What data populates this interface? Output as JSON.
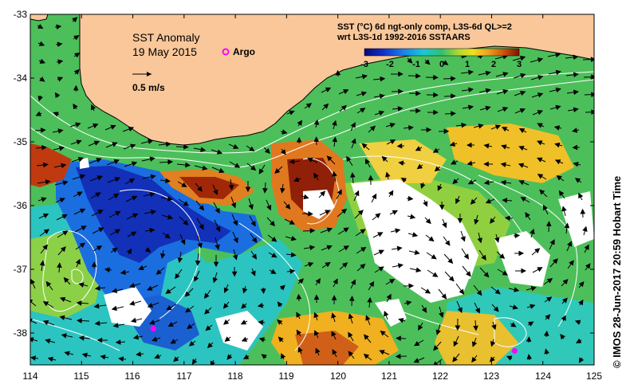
{
  "map": {
    "title": "SST Anomaly",
    "date": "19 May 2015",
    "argo_label": "Argo",
    "scale_label": "0.5 m/s",
    "legend_title_line1": "SST (°C) 6d ngt-only comp, L3S-6d QL>=2",
    "legend_title_line2": "wrt L3S-1d 1992-2016 SSTAARS",
    "colorbar_ticks": [
      "-3",
      "-2",
      "-1",
      "0",
      "1",
      "2",
      "3"
    ],
    "lat_labels": [
      "-33",
      "-34",
      "-35",
      "-36",
      "-37",
      "-38"
    ],
    "lon_labels": [
      "114",
      "115",
      "116",
      "117",
      "118",
      "119",
      "120",
      "121",
      "122",
      "123",
      "124",
      "125"
    ],
    "credit": "© IMOS 28-Jun-2017 20:59 Hobart Time",
    "colors": {
      "land": "#F9C79A",
      "no_data": "#FFFFFF",
      "argo_marker": "#FF00FF",
      "contour": "#FFFFFF",
      "arrow": "#000000"
    },
    "argo_floats": [
      {
        "lon": 116.4,
        "lat": -37.93
      },
      {
        "lon": 123.45,
        "lat": -38.28
      }
    ]
  }
}
